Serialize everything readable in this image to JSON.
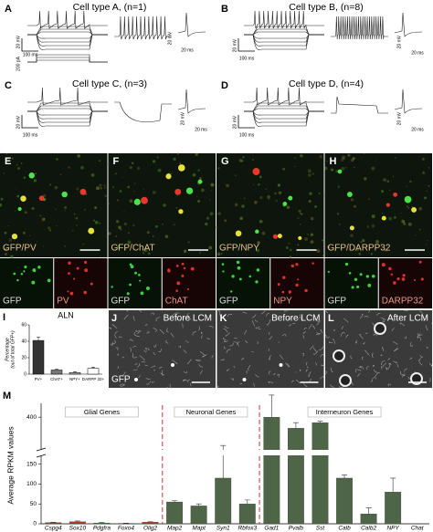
{
  "panels": [
    {
      "letter": "A",
      "title": "Cell type A, (n=1)",
      "scale_labels": [
        "20 mV",
        "100 ms",
        "200 pA",
        "20 mV",
        "20 ms"
      ]
    },
    {
      "letter": "B",
      "title": "Cell type B, (n=8)",
      "scale_labels": [
        "20 mV",
        "100 ms",
        "20 mV",
        "20 ms"
      ]
    },
    {
      "letter": "C",
      "title": "Cell type C, (n=3)",
      "scale_labels": [
        "20 mV",
        "100 ms",
        "20 mV",
        "20 ms"
      ]
    },
    {
      "letter": "D",
      "title": "Cell type D, (n=4)",
      "scale_labels": [
        "20 mV",
        "100 ms",
        "20 mV",
        "20 ms"
      ]
    }
  ],
  "images": [
    {
      "letter": "E",
      "merge_label": "GFP/PV",
      "green_label": "GFP",
      "red_label": "PV"
    },
    {
      "letter": "F",
      "merge_label": "GFP/ChAT",
      "green_label": "GFP",
      "red_label": "ChAT"
    },
    {
      "letter": "G",
      "merge_label": "GFP/NPY",
      "green_label": "GFP",
      "red_label": "NPY"
    },
    {
      "letter": "H",
      "merge_label": "GFP/DARPP32",
      "green_label": "GFP",
      "red_label": "DARPP32"
    }
  ],
  "lcm": [
    {
      "letter": "J",
      "label": "Before LCM",
      "marker": "GFP"
    },
    {
      "letter": "K",
      "label": "Before LCM"
    },
    {
      "letter": "L",
      "label": "After LCM"
    }
  ],
  "chart_i": {
    "type": "bar",
    "letter": "I",
    "title": "ALN",
    "y_label": [
      "Percentage",
      "(out of total GFP+)"
    ],
    "categories": [
      "PV+",
      "ChAT+",
      "NPY+",
      "DARPP 32+"
    ],
    "values": [
      41,
      5,
      2,
      7
    ],
    "errors": [
      4,
      1,
      1,
      1.5
    ],
    "colors": [
      "#333333",
      "#777777",
      "#aaaaaa",
      "#ffffff"
    ],
    "ylim": [
      0,
      60
    ],
    "yticks": [
      0,
      20,
      40,
      60
    ]
  },
  "chart_m": {
    "type": "bar",
    "letter": "M",
    "y_label": "Average RPKM values",
    "groups": [
      {
        "name": "Glial Genes",
        "color": "#b0392e",
        "categories": [
          "Cspg4",
          "Sox10",
          "Pdgfra",
          "Foxo4",
          "Olig2"
        ],
        "values": [
          3,
          5,
          2,
          1,
          4
        ],
        "errors": [
          1,
          2,
          1,
          0.5,
          1
        ]
      },
      {
        "name": "Neuronal Genes",
        "color": "#4f6548",
        "categories": [
          "Map2",
          "Mapt",
          "Syn1",
          "Rbfox3"
        ],
        "values": [
          55,
          45,
          115,
          50
        ],
        "errors": [
          3,
          5,
          80,
          10
        ]
      },
      {
        "name": "Interneuron Genes",
        "color": "#4f6548",
        "categories": [
          "Gad1",
          "Pvalb",
          "Sst",
          "Calb",
          "Calb2",
          "NPY",
          "Chat"
        ],
        "values": [
          400,
          320,
          360,
          115,
          25,
          80,
          0
        ],
        "errors": [
          160,
          40,
          10,
          8,
          15,
          35,
          0
        ]
      }
    ],
    "ylim_lower": [
      0,
      170
    ],
    "yticks_lower": [
      0,
      50,
      100,
      150
    ],
    "ylim_upper": [
      170,
      500
    ],
    "yticks_upper": [
      400
    ]
  }
}
